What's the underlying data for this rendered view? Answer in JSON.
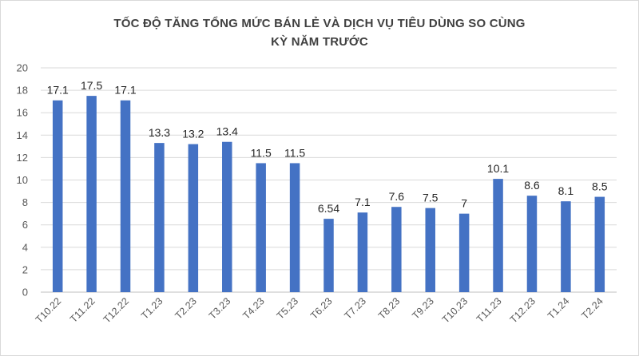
{
  "chart_data": {
    "type": "bar",
    "title_lines": [
      "TỐC ĐỘ TĂNG TỔNG MỨC BÁN LẺ  VÀ DỊCH VỤ TIÊU DÙNG SO CÙNG",
      "KỲ NĂM TRƯỚC"
    ],
    "xlabel": "",
    "ylabel": "",
    "ylim": [
      0,
      20
    ],
    "yticks": [
      "0",
      "2",
      "4",
      "6",
      "8",
      "10",
      "12",
      "14",
      "16",
      "18",
      "20"
    ],
    "grid": true,
    "legend": "none",
    "bar_color": "#4472c4",
    "categories": [
      "T10.22",
      "T11.22",
      "T12.22",
      "T1.23",
      "T2.23",
      "T3.23",
      "T4.23",
      "T5.23",
      "T6.23",
      "T7.23",
      "T8.23",
      "T9.23",
      "T10.23",
      "T11.23",
      "T12.23",
      "T1.24",
      "T2.24"
    ],
    "values": [
      17.1,
      17.5,
      17.1,
      13.3,
      13.2,
      13.4,
      11.5,
      11.5,
      6.54,
      7.1,
      7.6,
      7.5,
      7,
      10.1,
      8.6,
      8.1,
      8.5
    ],
    "value_labels": [
      "17.1",
      "17.5",
      "17.1",
      "13.3",
      "13.2",
      "13.4",
      "11.5",
      "11.5",
      "6.54",
      "7.1",
      "7.6",
      "7.5",
      "7",
      "10.1",
      "8.6",
      "8.1",
      "8.5"
    ]
  }
}
